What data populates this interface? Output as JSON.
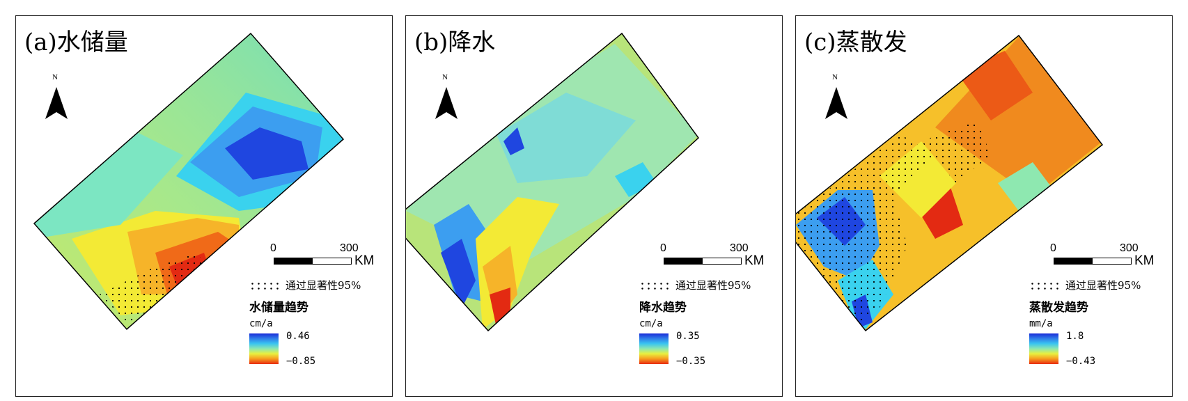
{
  "north_label": "N",
  "scale": {
    "tick0": "0",
    "tick300": "300",
    "unit": "KM"
  },
  "significance_label": "通过显著性95%",
  "panels": [
    {
      "title": "(a)水储量",
      "legend_title": "水储量趋势",
      "unit": "cm/a",
      "max": "0.46",
      "min": "−0.85"
    },
    {
      "title": "(b)降水",
      "legend_title": "降水趋势",
      "unit": "cm/a",
      "max": "0.35",
      "min": "−0.35"
    },
    {
      "title": "(c)蒸散发",
      "legend_title": "蒸散发趋势",
      "unit": "mm/a",
      "max": "1.8",
      "min": "−0.43"
    }
  ],
  "colors": {
    "high": "#1a2bd8",
    "mid": "#8ee8b0",
    "low": "#e82a10"
  }
}
